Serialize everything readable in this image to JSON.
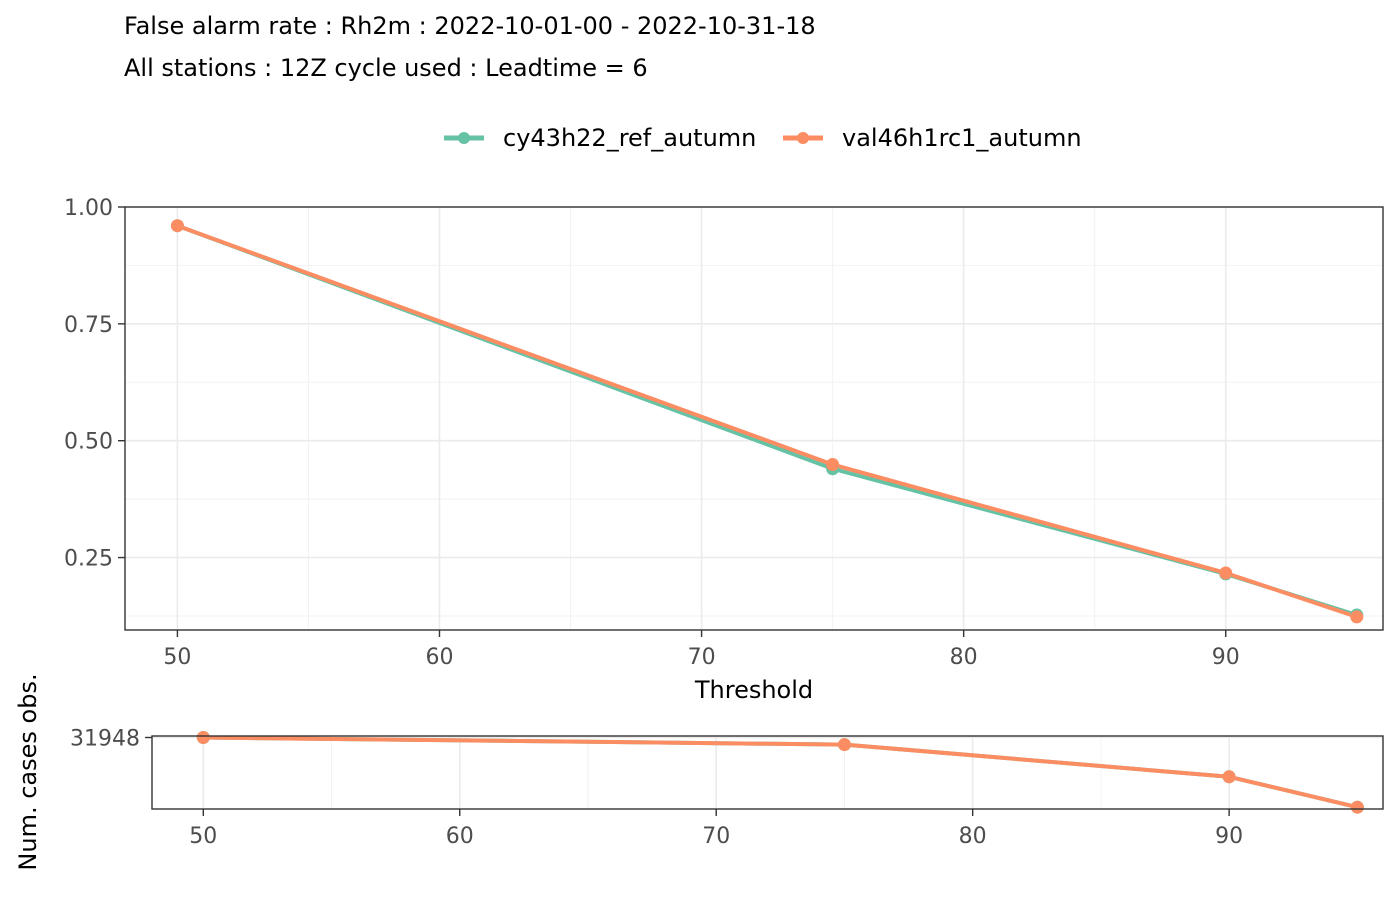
{
  "header": {
    "title_line1": "False alarm rate : Rh2m : 2022-10-01-00 - 2022-10-31-18",
    "title_line2": "All stations : 12Z cycle used : Leadtime = 6"
  },
  "chart_data": [
    {
      "type": "line",
      "xlabel": "Threshold",
      "ylabel": "",
      "xlim": [
        48,
        96
      ],
      "ylim": [
        0.095,
        1.0
      ],
      "x_ticks": [
        50,
        60,
        70,
        80,
        90
      ],
      "y_ticks": [
        0.25,
        0.5,
        0.75,
        1.0
      ],
      "y_tick_labels": [
        "0.25",
        "0.50",
        "0.75",
        "1.00"
      ],
      "legend_position": "top",
      "grid": true,
      "series": [
        {
          "name": "cy43h22_ref_autumn",
          "color": "#66c2a5",
          "x": [
            50,
            75,
            90,
            95
          ],
          "y": [
            0.96,
            0.44,
            0.215,
            0.127
          ]
        },
        {
          "name": "val46h1rc1_autumn",
          "color": "#fc8d62",
          "x": [
            50,
            75,
            90,
            95
          ],
          "y": [
            0.96,
            0.449,
            0.217,
            0.123
          ]
        }
      ]
    },
    {
      "type": "line",
      "xlabel": "",
      "ylabel": "Num. cases obs.",
      "xlim": [
        48,
        96
      ],
      "ylim": [
        29950,
        31990
      ],
      "x_ticks": [
        50,
        60,
        70,
        80,
        90
      ],
      "y_ticks": [
        31948
      ],
      "y_tick_labels": [
        "31948"
      ],
      "grid": true,
      "series": [
        {
          "name": "cy43h22_ref_autumn",
          "color": "#66c2a5",
          "x": [
            50,
            75,
            90,
            95
          ],
          "y": [
            31948,
            31750,
            30850,
            30000
          ]
        },
        {
          "name": "val46h1rc1_autumn",
          "color": "#fc8d62",
          "x": [
            50,
            75,
            90,
            95
          ],
          "y": [
            31948,
            31750,
            30850,
            30000
          ]
        }
      ]
    }
  ]
}
